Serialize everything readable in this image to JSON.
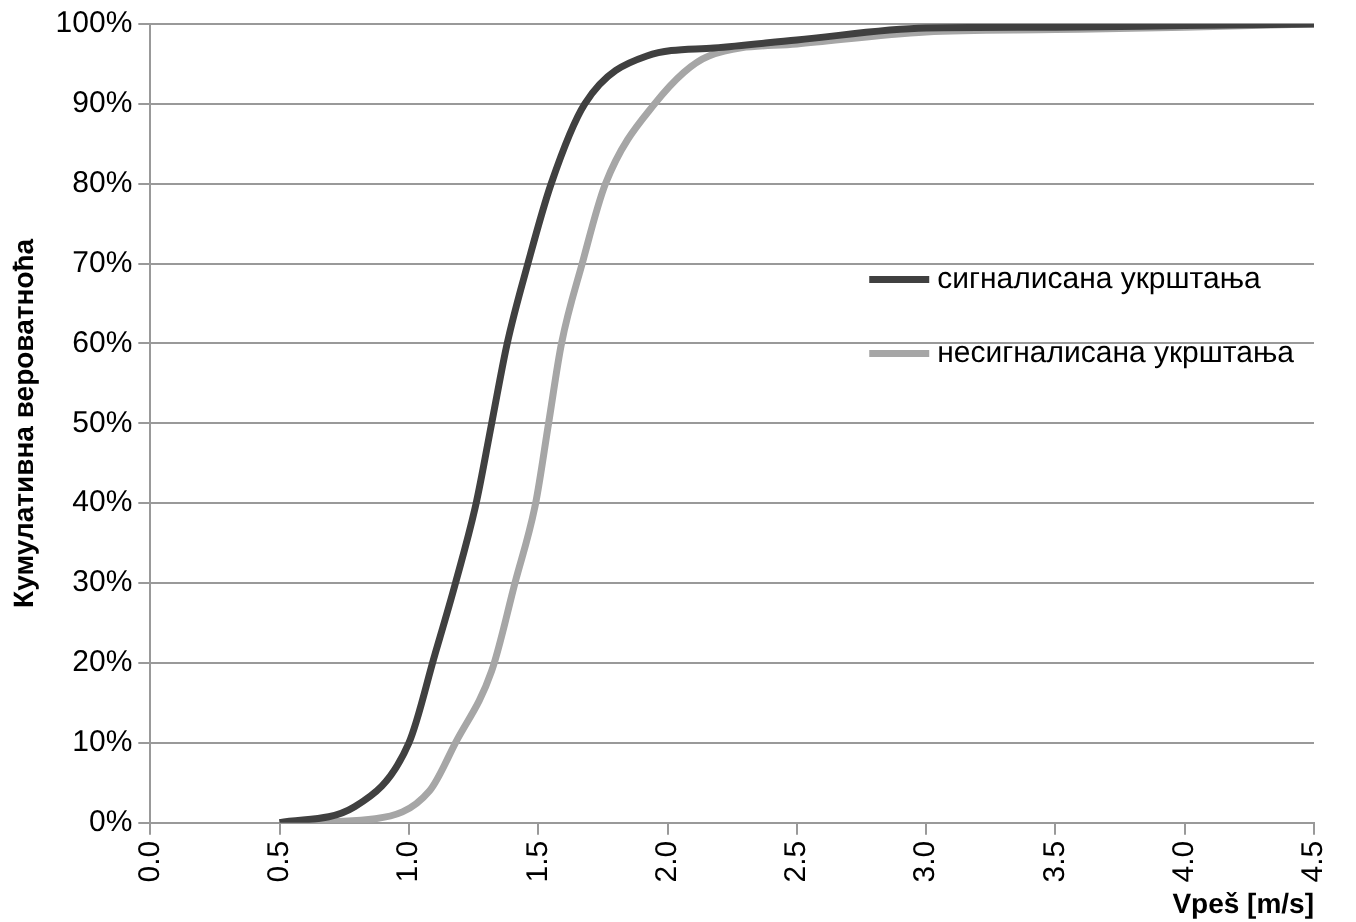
{
  "chart_data": {
    "type": "line",
    "xlabel": "Vpeš [m/s]",
    "ylabel": "Кумулативна вероватноћа",
    "xlim": [
      0,
      4.5
    ],
    "xticks": [
      {
        "value": 0,
        "label": "0.0"
      },
      {
        "value": 0.5,
        "label": "0.5"
      },
      {
        "value": 1,
        "label": "1.0"
      },
      {
        "value": 1.5,
        "label": "1.5"
      },
      {
        "value": 2,
        "label": "2.0"
      },
      {
        "value": 2.5,
        "label": "2.5"
      },
      {
        "value": 3,
        "label": "3.0"
      },
      {
        "value": 3.5,
        "label": "3.5"
      },
      {
        "value": 4,
        "label": "4.0"
      },
      {
        "value": 4.5,
        "label": "4.5"
      }
    ],
    "ylim": [
      0,
      100
    ],
    "yticks": [
      {
        "value": 0,
        "label": "0%"
      },
      {
        "value": 10,
        "label": "10%"
      },
      {
        "value": 20,
        "label": "20%"
      },
      {
        "value": 30,
        "label": "30%"
      },
      {
        "value": 40,
        "label": "40%"
      },
      {
        "value": 50,
        "label": "50%"
      },
      {
        "value": 60,
        "label": "60%"
      },
      {
        "value": 70,
        "label": "70%"
      },
      {
        "value": 80,
        "label": "80%"
      },
      {
        "value": 90,
        "label": "90%"
      },
      {
        "value": 100,
        "label": "100%"
      }
    ],
    "grid": "y",
    "legend": "right",
    "marker": "none",
    "line_style": "solid",
    "series": [
      {
        "name": "сигналисана укрштања",
        "color": "#404040",
        "x": [
          0.5,
          0.79,
          1.0,
          1.1,
          1.18,
          1.26,
          1.32,
          1.38,
          1.46,
          1.55,
          1.68,
          1.92,
          2.18,
          2.5,
          3.0,
          3.5,
          4.0,
          4.5
        ],
        "values": [
          0,
          2,
          10,
          21,
          30,
          40,
          50,
          60,
          70,
          80,
          90,
          96,
          97,
          98,
          99.5,
          99.6,
          99.8,
          100
        ]
      },
      {
        "name": "несигналисана укрштања",
        "color": "#a6a6a6",
        "x": [
          0.5,
          0.87,
          1.08,
          1.18,
          1.32,
          1.41,
          1.49,
          1.54,
          1.59,
          1.67,
          1.76,
          1.95,
          2.16,
          2.5,
          3.0,
          3.5,
          4.0,
          4.5
        ],
        "values": [
          0,
          0.5,
          4,
          10,
          19,
          30,
          40,
          50,
          60,
          70,
          80,
          90,
          96,
          97.5,
          99,
          99.3,
          99.6,
          100
        ]
      }
    ]
  }
}
